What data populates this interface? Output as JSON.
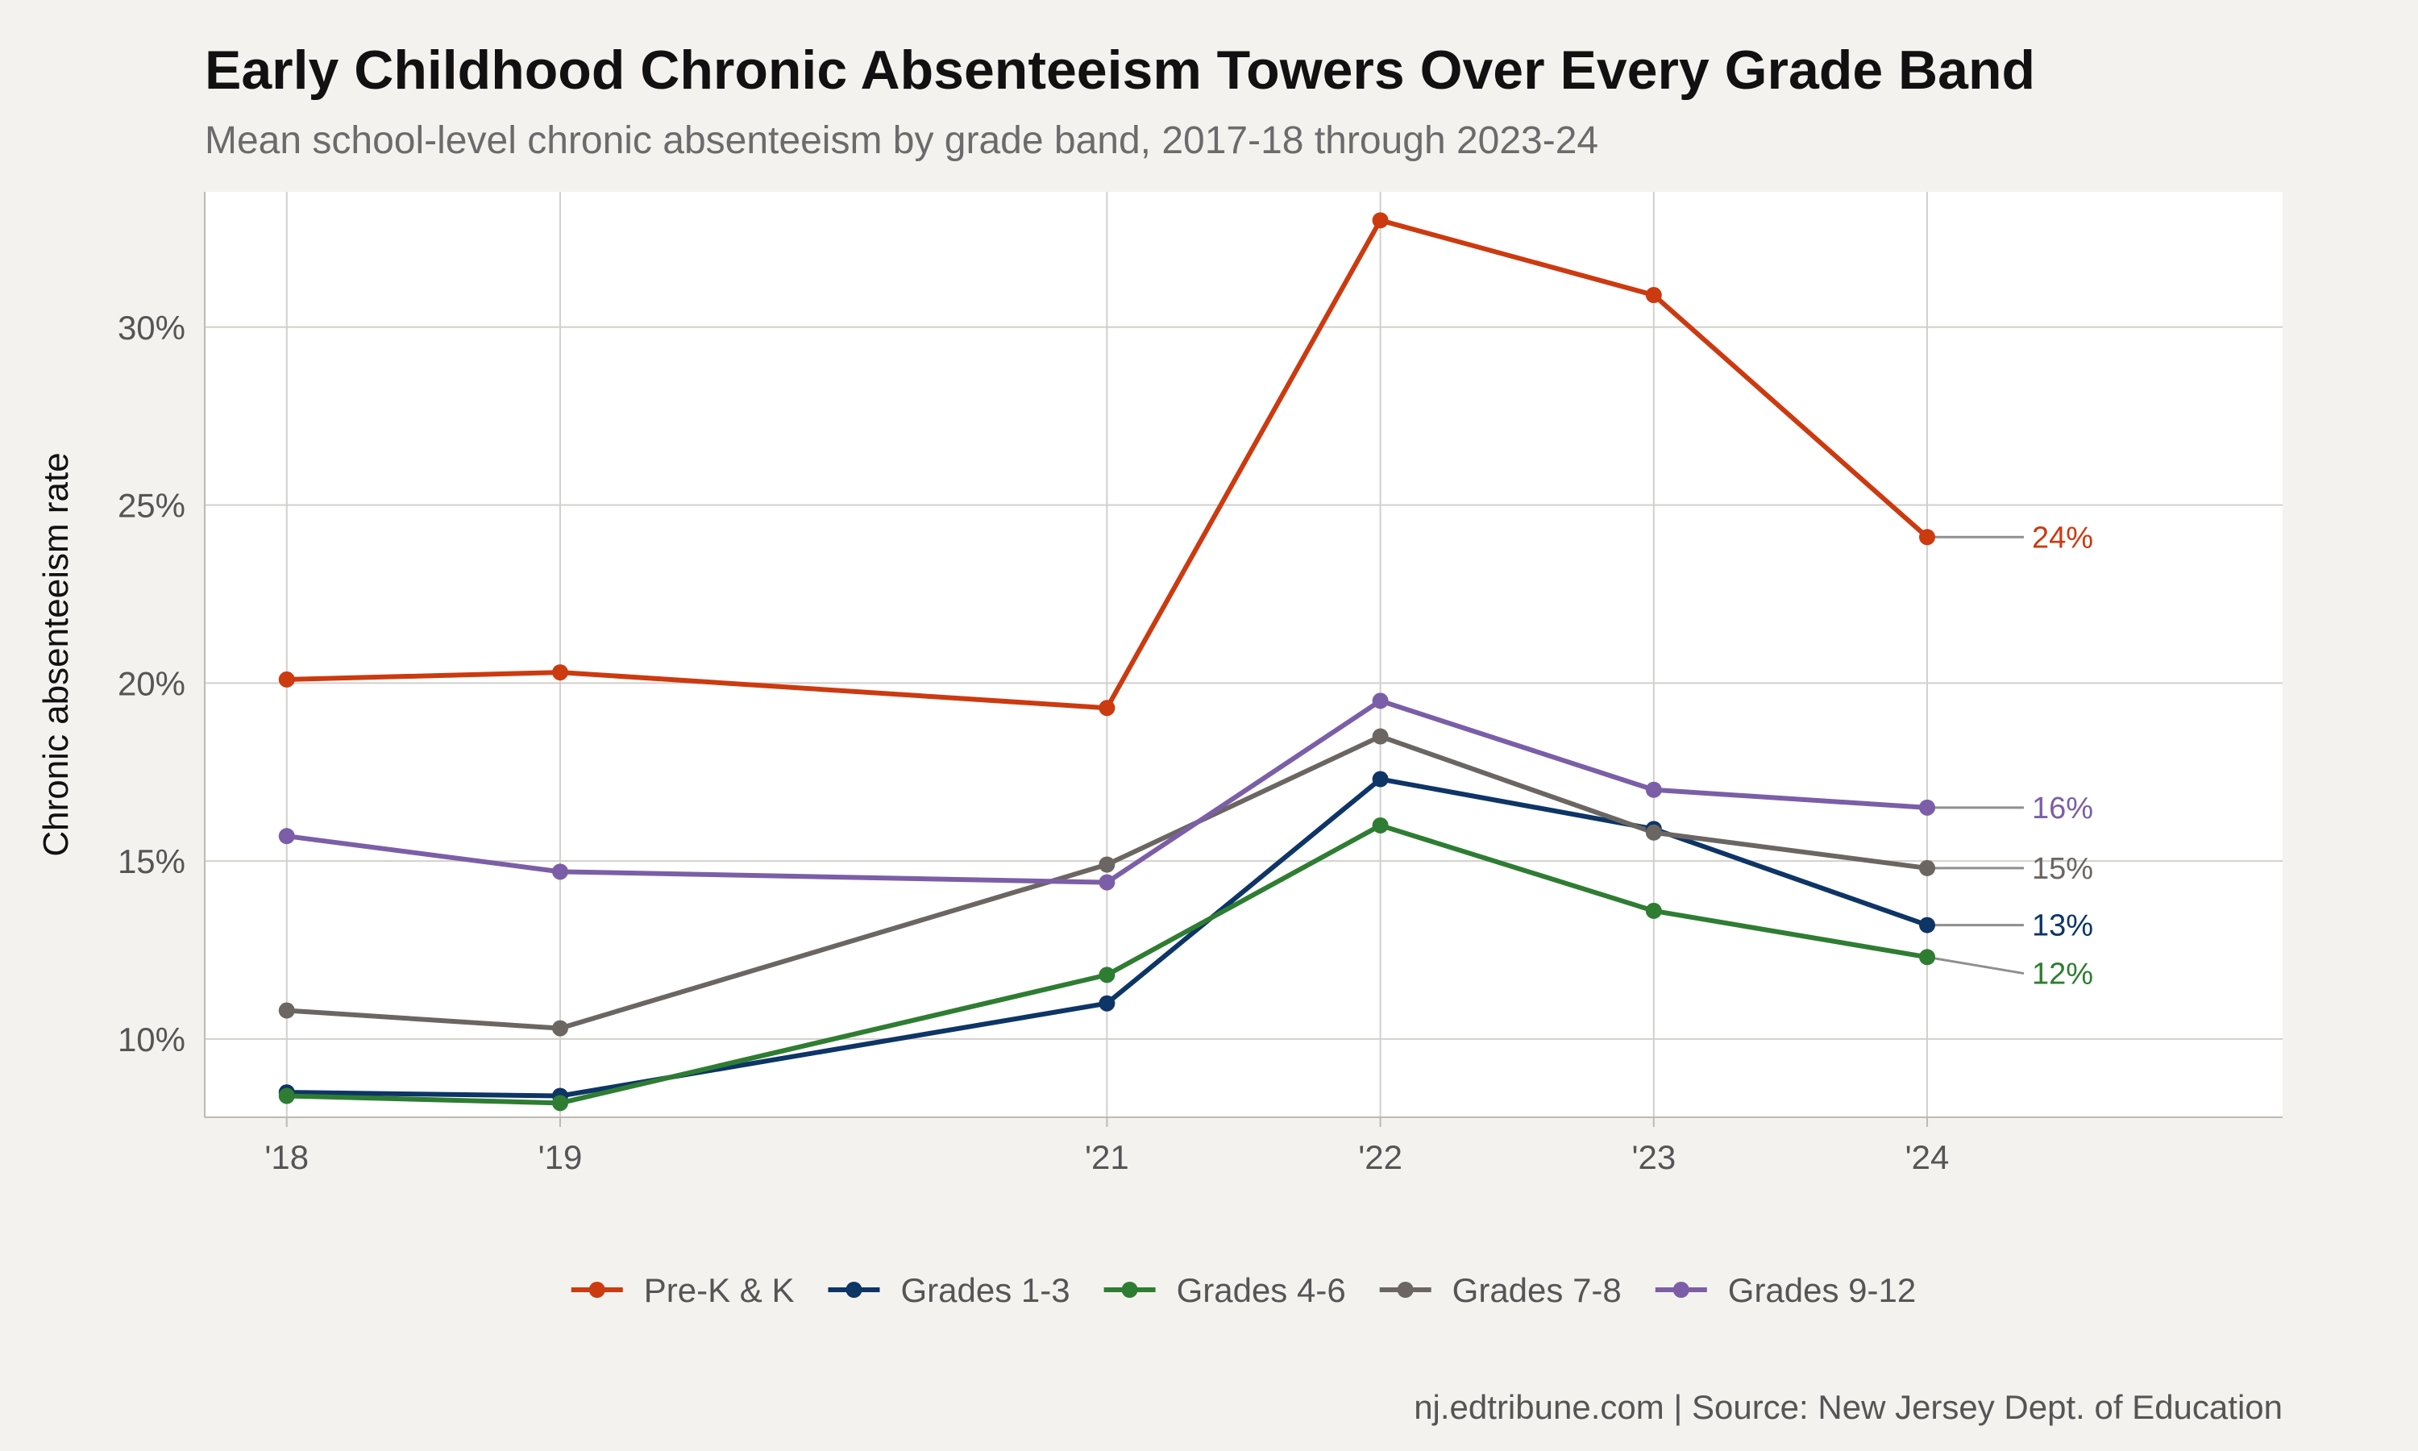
{
  "title": "Early Childhood Chronic Absenteeism Towers Over Every Grade Band",
  "subtitle": "Mean school-level chronic absenteeism by grade band, 2017-18 through 2023-24",
  "caption": "nj.edtribune.com | Source: New Jersey Dept. of Education",
  "chart_data": {
    "type": "line",
    "title": "Early Childhood Chronic Absenteeism Towers Over Every Grade Band",
    "subtitle": "Mean school-level chronic absenteeism by grade band, 2017-18 through 2023-24",
    "xlabel": "",
    "ylabel": "Chronic absenteeism rate",
    "x": [
      2018,
      2019,
      2021,
      2022,
      2023,
      2024
    ],
    "x_tick_labels": [
      "'18",
      "'19",
      "'21",
      "'22",
      "'23",
      "'24"
    ],
    "xlim": [
      2017.7,
      2025.3
    ],
    "ylim": [
      7.8,
      33.8
    ],
    "y_ticks": [
      10,
      15,
      20,
      25,
      30
    ],
    "y_tick_labels": [
      "10%",
      "15%",
      "20%",
      "25%",
      "30%"
    ],
    "grid": true,
    "legend_position": "bottom",
    "series": [
      {
        "name": "Pre-K & K",
        "color": "#cc3a10",
        "values": [
          20.1,
          20.3,
          19.3,
          33.0,
          30.9,
          24.1
        ],
        "end_label": "24%"
      },
      {
        "name": "Grades 1-3",
        "color": "#0d3566",
        "values": [
          8.5,
          8.4,
          11.0,
          17.3,
          15.9,
          13.2
        ],
        "end_label": "13%"
      },
      {
        "name": "Grades 4-6",
        "color": "#2e7d32",
        "values": [
          8.4,
          8.2,
          11.8,
          16.0,
          13.6,
          12.3
        ],
        "end_label": "12%"
      },
      {
        "name": "Grades 7-8",
        "color": "#6b6662",
        "values": [
          10.8,
          10.3,
          14.9,
          18.5,
          15.8,
          14.8
        ],
        "end_label": "15%"
      },
      {
        "name": "Grades 9-12",
        "color": "#7b5ea7",
        "values": [
          15.7,
          14.7,
          14.4,
          19.5,
          17.0,
          16.5
        ],
        "end_label": "16%"
      }
    ]
  }
}
